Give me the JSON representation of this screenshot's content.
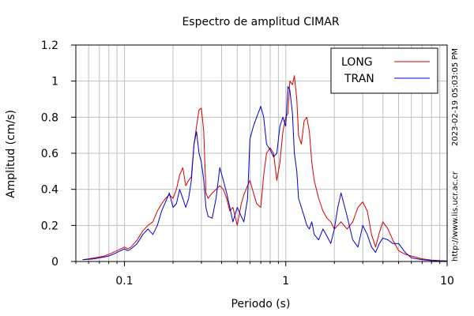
{
  "chart_data": {
    "type": "line",
    "title": "Espectro de amplitud CIMAR",
    "xlabel": "Periodo (s)",
    "ylabel": "Amplitud (cm/s)",
    "xscale": "log",
    "xlim": [
      0.05,
      10
    ],
    "ylim": [
      0,
      1.2
    ],
    "grid": true,
    "legend_position": "top-right",
    "x_tick_labels": [
      "0.1",
      "1",
      "10"
    ],
    "x_tick_values": [
      0.1,
      1,
      10
    ],
    "y_tick_labels": [
      "0",
      "0.2",
      "0.4",
      "0.6",
      "0.8",
      "1",
      "1.2"
    ],
    "y_tick_values": [
      0,
      0.2,
      0.4,
      0.6,
      0.8,
      1.0,
      1.2
    ],
    "side_labels": {
      "timestamp": "2023-02-19 05:03:05 PM",
      "url": "http://www.lis.ucr.ac.cr"
    },
    "series": [
      {
        "name": "LONG",
        "color": "#d40000",
        "x": [
          0.055,
          0.06,
          0.065,
          0.07,
          0.075,
          0.08,
          0.085,
          0.09,
          0.1,
          0.105,
          0.11,
          0.12,
          0.13,
          0.14,
          0.15,
          0.16,
          0.17,
          0.18,
          0.19,
          0.2,
          0.21,
          0.22,
          0.23,
          0.24,
          0.25,
          0.26,
          0.27,
          0.28,
          0.29,
          0.3,
          0.31,
          0.32,
          0.33,
          0.35,
          0.37,
          0.39,
          0.41,
          0.43,
          0.45,
          0.47,
          0.5,
          0.53,
          0.55,
          0.58,
          0.6,
          0.63,
          0.66,
          0.7,
          0.73,
          0.76,
          0.8,
          0.84,
          0.88,
          0.92,
          0.96,
          1.0,
          1.03,
          1.06,
          1.1,
          1.13,
          1.17,
          1.2,
          1.25,
          1.3,
          1.35,
          1.4,
          1.45,
          1.5,
          1.6,
          1.7,
          1.8,
          1.9,
          2.0,
          2.1,
          2.2,
          2.4,
          2.6,
          2.8,
          3.0,
          3.2,
          3.4,
          3.6,
          3.8,
          4.0,
          4.3,
          4.6,
          5.0,
          5.5,
          6.0,
          7.0,
          8.0,
          9.0,
          10.0
        ],
        "y": [
          0.01,
          0.015,
          0.02,
          0.025,
          0.03,
          0.04,
          0.05,
          0.06,
          0.08,
          0.07,
          0.08,
          0.12,
          0.17,
          0.2,
          0.22,
          0.28,
          0.32,
          0.35,
          0.37,
          0.35,
          0.4,
          0.48,
          0.52,
          0.42,
          0.45,
          0.47,
          0.65,
          0.75,
          0.84,
          0.85,
          0.72,
          0.38,
          0.35,
          0.38,
          0.4,
          0.42,
          0.4,
          0.35,
          0.28,
          0.3,
          0.2,
          0.32,
          0.37,
          0.42,
          0.45,
          0.38,
          0.32,
          0.3,
          0.48,
          0.6,
          0.63,
          0.6,
          0.45,
          0.55,
          0.72,
          0.8,
          0.82,
          1.0,
          0.98,
          1.03,
          0.9,
          0.7,
          0.65,
          0.78,
          0.8,
          0.72,
          0.55,
          0.45,
          0.35,
          0.28,
          0.24,
          0.22,
          0.18,
          0.2,
          0.22,
          0.18,
          0.22,
          0.3,
          0.33,
          0.28,
          0.15,
          0.08,
          0.16,
          0.22,
          0.18,
          0.12,
          0.06,
          0.04,
          0.03,
          0.015,
          0.008,
          0.005,
          0.003
        ]
      },
      {
        "name": "TRAN",
        "color": "#0000c8",
        "x": [
          0.055,
          0.06,
          0.065,
          0.07,
          0.075,
          0.08,
          0.085,
          0.09,
          0.1,
          0.105,
          0.11,
          0.12,
          0.13,
          0.14,
          0.15,
          0.16,
          0.17,
          0.18,
          0.19,
          0.2,
          0.21,
          0.22,
          0.23,
          0.24,
          0.25,
          0.26,
          0.27,
          0.28,
          0.29,
          0.3,
          0.31,
          0.32,
          0.33,
          0.35,
          0.37,
          0.39,
          0.41,
          0.43,
          0.45,
          0.47,
          0.5,
          0.53,
          0.55,
          0.58,
          0.6,
          0.63,
          0.66,
          0.7,
          0.73,
          0.76,
          0.8,
          0.84,
          0.88,
          0.92,
          0.96,
          1.0,
          1.03,
          1.06,
          1.1,
          1.13,
          1.17,
          1.2,
          1.25,
          1.3,
          1.35,
          1.4,
          1.45,
          1.5,
          1.6,
          1.7,
          1.8,
          1.9,
          2.0,
          2.1,
          2.2,
          2.4,
          2.6,
          2.8,
          3.0,
          3.2,
          3.4,
          3.6,
          3.8,
          4.0,
          4.3,
          4.6,
          5.0,
          5.5,
          6.0,
          7.0,
          8.0,
          9.0,
          10.0
        ],
        "y": [
          0.01,
          0.012,
          0.015,
          0.02,
          0.025,
          0.03,
          0.04,
          0.05,
          0.07,
          0.06,
          0.07,
          0.1,
          0.15,
          0.18,
          0.15,
          0.2,
          0.28,
          0.33,
          0.38,
          0.3,
          0.32,
          0.4,
          0.35,
          0.3,
          0.35,
          0.45,
          0.65,
          0.72,
          0.6,
          0.55,
          0.45,
          0.3,
          0.25,
          0.24,
          0.35,
          0.52,
          0.45,
          0.38,
          0.3,
          0.22,
          0.3,
          0.25,
          0.22,
          0.35,
          0.68,
          0.75,
          0.8,
          0.86,
          0.8,
          0.65,
          0.62,
          0.58,
          0.6,
          0.75,
          0.8,
          0.75,
          0.97,
          0.95,
          0.82,
          0.6,
          0.5,
          0.35,
          0.3,
          0.25,
          0.2,
          0.18,
          0.22,
          0.15,
          0.12,
          0.18,
          0.14,
          0.1,
          0.18,
          0.3,
          0.38,
          0.25,
          0.12,
          0.08,
          0.2,
          0.15,
          0.08,
          0.05,
          0.1,
          0.13,
          0.12,
          0.1,
          0.1,
          0.05,
          0.02,
          0.01,
          0.005,
          0.003,
          0.002
        ]
      }
    ]
  }
}
